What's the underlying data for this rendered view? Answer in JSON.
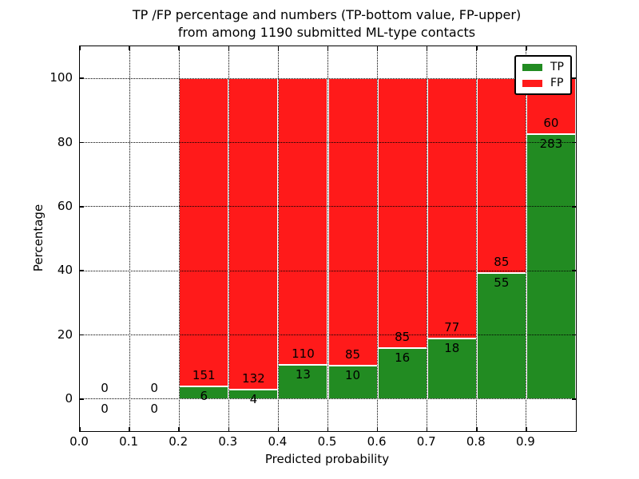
{
  "chart_data": {
    "type": "bar",
    "subtype": "stacked-percentage",
    "title": "TP /FP percentage and numbers (TP-bottom value, FP-upper) from among 1190 submitted ML-type contacts",
    "title_line1": "TP /FP percentage and numbers (TP-bottom value, FP-upper)",
    "title_line2": "from among 1190 submitted ML-type contacts",
    "xlabel": "Predicted probability",
    "ylabel": "Percentage",
    "total_contacts": 1190,
    "xlim": [
      0.0,
      1.0
    ],
    "ylim": [
      -10,
      110
    ],
    "grid": true,
    "legend_position": "upper right",
    "xticks": [
      {
        "value": 0.0,
        "label": "0.0"
      },
      {
        "value": 0.1,
        "label": "0.1"
      },
      {
        "value": 0.2,
        "label": "0.2"
      },
      {
        "value": 0.3,
        "label": "0.3"
      },
      {
        "value": 0.4,
        "label": "0.4"
      },
      {
        "value": 0.5,
        "label": "0.5"
      },
      {
        "value": 0.6,
        "label": "0.6"
      },
      {
        "value": 0.7,
        "label": "0.7"
      },
      {
        "value": 0.8,
        "label": "0.8"
      },
      {
        "value": 0.9,
        "label": "0.9"
      }
    ],
    "yticks": [
      {
        "value": 0,
        "label": "0"
      },
      {
        "value": 20,
        "label": "20"
      },
      {
        "value": 40,
        "label": "40"
      },
      {
        "value": 60,
        "label": "60"
      },
      {
        "value": 80,
        "label": "80"
      },
      {
        "value": 100,
        "label": "100"
      }
    ],
    "series": [
      {
        "name": "TP",
        "color": "#228b22",
        "position": "bottom"
      },
      {
        "name": "FP",
        "color": "#ff1a1a",
        "position": "top"
      }
    ],
    "bins": [
      {
        "x_start": 0.0,
        "x_end": 0.1,
        "tp": 0,
        "fp": 0
      },
      {
        "x_start": 0.1,
        "x_end": 0.2,
        "tp": 0,
        "fp": 0
      },
      {
        "x_start": 0.2,
        "x_end": 0.3,
        "tp": 6,
        "fp": 151
      },
      {
        "x_start": 0.3,
        "x_end": 0.4,
        "tp": 4,
        "fp": 132
      },
      {
        "x_start": 0.4,
        "x_end": 0.5,
        "tp": 13,
        "fp": 110
      },
      {
        "x_start": 0.5,
        "x_end": 0.6,
        "tp": 10,
        "fp": 85
      },
      {
        "x_start": 0.6,
        "x_end": 0.7,
        "tp": 16,
        "fp": 85
      },
      {
        "x_start": 0.7,
        "x_end": 0.8,
        "tp": 18,
        "fp": 77
      },
      {
        "x_start": 0.8,
        "x_end": 0.9,
        "tp": 55,
        "fp": 85
      },
      {
        "x_start": 0.9,
        "x_end": 1.0,
        "tp": 283,
        "fp": 60
      }
    ]
  },
  "colors": {
    "background": "#ffffff",
    "frame": "#000000",
    "grid": "#000000",
    "text": "#000000"
  }
}
